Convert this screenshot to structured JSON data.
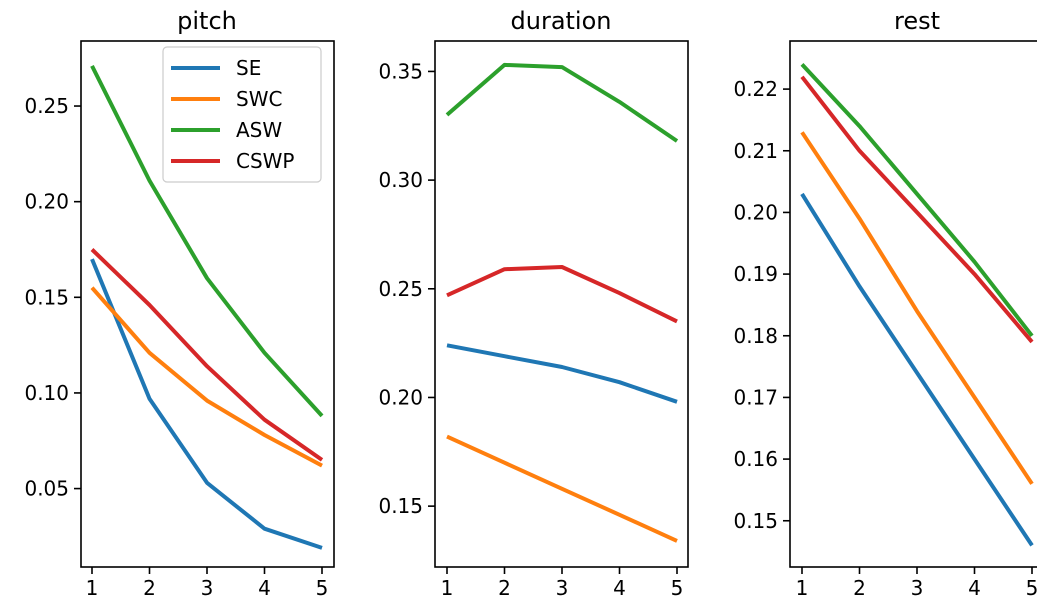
{
  "chart_data": [
    {
      "type": "line",
      "title": "pitch",
      "xlabel": "",
      "ylabel": "",
      "x": [
        1,
        2,
        3,
        4,
        5
      ],
      "xticks": [
        "1",
        "2",
        "3",
        "4",
        "5"
      ],
      "yticks": [
        "0.05",
        "0.10",
        "0.15",
        "0.20",
        "0.25"
      ],
      "ylim": [
        0.009,
        0.284
      ],
      "legend": "top-right",
      "grid": false,
      "series": [
        {
          "name": "SE",
          "color": "#1f77b4",
          "values": [
            0.17,
            0.097,
            0.053,
            0.029,
            0.019
          ]
        },
        {
          "name": "SWC",
          "color": "#ff7f0e",
          "values": [
            0.155,
            0.121,
            0.096,
            0.078,
            0.062
          ]
        },
        {
          "name": "ASW",
          "color": "#2ca02c",
          "values": [
            0.271,
            0.211,
            0.16,
            0.121,
            0.088
          ]
        },
        {
          "name": "CSWP",
          "color": "#d62728",
          "values": [
            0.175,
            0.146,
            0.114,
            0.086,
            0.065
          ]
        }
      ]
    },
    {
      "type": "line",
      "title": "duration",
      "xlabel": "",
      "ylabel": "",
      "x": [
        1,
        2,
        3,
        4,
        5
      ],
      "xticks": [
        "1",
        "2",
        "3",
        "4",
        "5"
      ],
      "yticks": [
        "0.15",
        "0.20",
        "0.25",
        "0.30",
        "0.35"
      ],
      "ylim": [
        0.122,
        0.364
      ],
      "grid": false,
      "series": [
        {
          "color": "#1f77b4",
          "values": [
            0.224,
            0.219,
            0.214,
            0.207,
            0.198
          ]
        },
        {
          "color": "#ff7f0e",
          "values": [
            0.182,
            0.17,
            0.158,
            0.146,
            0.134
          ]
        },
        {
          "color": "#2ca02c",
          "values": [
            0.33,
            0.353,
            0.352,
            0.336,
            0.318
          ]
        },
        {
          "color": "#d62728",
          "values": [
            0.247,
            0.259,
            0.26,
            0.248,
            0.235
          ]
        }
      ]
    },
    {
      "type": "line",
      "title": "rest",
      "xlabel": "",
      "ylabel": "",
      "x": [
        1,
        2,
        3,
        4,
        5
      ],
      "xticks": [
        "1",
        "2",
        "3",
        "4",
        "5"
      ],
      "yticks": [
        "0.15",
        "0.16",
        "0.17",
        "0.18",
        "0.19",
        "0.20",
        "0.21",
        "0.22"
      ],
      "ylim": [
        0.1425,
        0.2278
      ],
      "grid": false,
      "series": [
        {
          "color": "#1f77b4",
          "values": [
            0.203,
            0.188,
            0.174,
            0.16,
            0.146
          ]
        },
        {
          "color": "#ff7f0e",
          "values": [
            0.213,
            0.199,
            0.184,
            0.17,
            0.156
          ]
        },
        {
          "color": "#2ca02c",
          "values": [
            0.224,
            0.214,
            0.203,
            0.192,
            0.18
          ]
        },
        {
          "color": "#d62728",
          "values": [
            0.222,
            0.21,
            0.2,
            0.19,
            0.179
          ]
        }
      ]
    }
  ]
}
